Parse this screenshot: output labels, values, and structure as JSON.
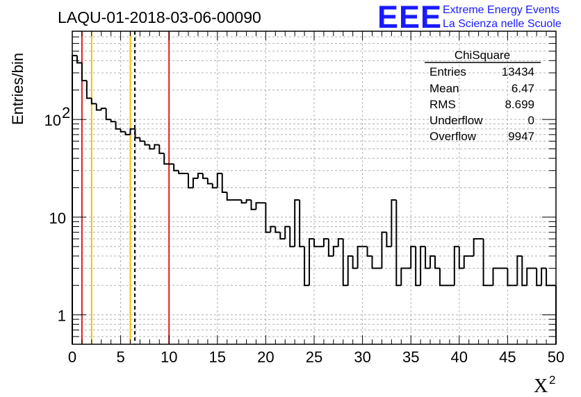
{
  "chart_data": {
    "type": "histogram",
    "title": "LAQU-01-2018-03-06-00090",
    "xlabel": "X",
    "xlabel_superscript": "2",
    "ylabel": "Entries/bin",
    "yscale": "log",
    "xlim": [
      0,
      50
    ],
    "ylim": [
      0.5,
      800
    ],
    "bin_width": 0.5,
    "x_ticks": [
      0,
      5,
      10,
      15,
      20,
      25,
      30,
      35,
      40,
      45,
      50
    ],
    "y_ticks": [
      {
        "value": 1,
        "label": "1"
      },
      {
        "value": 10,
        "label": "10"
      },
      {
        "value": 100,
        "label": "10",
        "sup": "2"
      }
    ],
    "bin_values": [
      450,
      380,
      250,
      165,
      145,
      125,
      130,
      100,
      95,
      80,
      75,
      70,
      80,
      65,
      60,
      55,
      50,
      55,
      45,
      35,
      35,
      30,
      28,
      28,
      20,
      25,
      28,
      25,
      22,
      20,
      28,
      18,
      15,
      15,
      15,
      14,
      15,
      12,
      14,
      14,
      7,
      8,
      7,
      6,
      8,
      5,
      15,
      5,
      2,
      6,
      5,
      5,
      6,
      4,
      5,
      6,
      2,
      4,
      3,
      5,
      5,
      4,
      3,
      3,
      7,
      5,
      15,
      2,
      3,
      3,
      5,
      2,
      5,
      3,
      4,
      3,
      2,
      2,
      2,
      5,
      3,
      4,
      4,
      6,
      6,
      2,
      2,
      3,
      3,
      3,
      2,
      2,
      4,
      2,
      3,
      3,
      2,
      3,
      2,
      2
    ],
    "vertical_lines": [
      {
        "x": 1,
        "color": "#e02020",
        "style": "solid"
      },
      {
        "x": 2,
        "color": "#f2c200",
        "style": "solid"
      },
      {
        "x": 6,
        "color": "#f2c200",
        "style": "solid"
      },
      {
        "x": 6.47,
        "color": "#000000",
        "style": "dashed"
      },
      {
        "x": 10,
        "color": "#e02020",
        "style": "solid"
      }
    ],
    "stats_box": {
      "title": "ChiSquare",
      "rows": [
        {
          "label": "Entries",
          "value": "13434"
        },
        {
          "label": "Mean",
          "value": "6.47"
        },
        {
          "label": "RMS",
          "value": "8.699"
        },
        {
          "label": "Underflow",
          "value": "0"
        },
        {
          "label": "Overflow",
          "value": "9947"
        }
      ]
    }
  },
  "logo": {
    "mark": "EEE",
    "line1": "Extreme Energy Events",
    "line2": "La Scienza nelle Scuole"
  },
  "colors": {
    "logo_blue": "#1a1aff",
    "grid": "#b0b0b0",
    "hist": "#000000"
  }
}
